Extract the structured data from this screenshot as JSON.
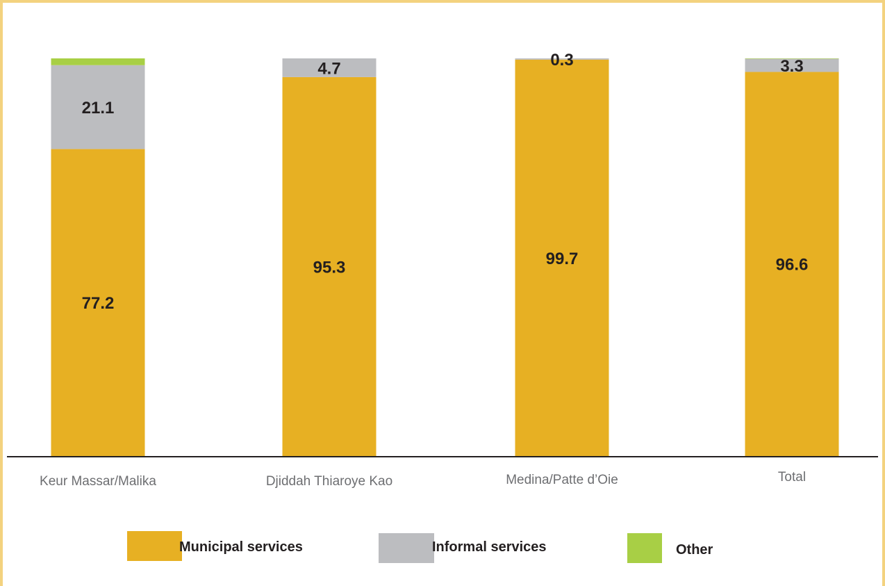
{
  "colors": {
    "frame": "#f3d27f",
    "municipal": "#e7b023",
    "informal": "#bcbdc0",
    "other": "#a8cf45",
    "axis": "#231f20",
    "category_text": "#6d6e71"
  },
  "chart_data": {
    "type": "bar",
    "stacked": true,
    "title": "",
    "xlabel": "",
    "ylabel": "",
    "ylim": [
      0,
      100
    ],
    "grid": false,
    "legend_position": "bottom",
    "categories": [
      "Keur Massar/Malika",
      "Djiddah Thiaroye Kao",
      "Medina/Patte d’Oie",
      "Total"
    ],
    "series": [
      {
        "name": "Municipal services",
        "color": "#e7b023",
        "values": [
          77.2,
          95.3,
          99.7,
          96.6
        ],
        "labels": [
          "77.2",
          "95.3",
          "99.7",
          "96.6"
        ]
      },
      {
        "name": "Informal services",
        "color": "#bcbdc0",
        "values": [
          21.1,
          4.7,
          0.3,
          3.3
        ],
        "labels": [
          "21.1",
          "4.7",
          "0.3",
          "3.3"
        ]
      },
      {
        "name": "Other",
        "color": "#a8cf45",
        "values": [
          1.7,
          0,
          0,
          0.1
        ],
        "labels": [
          "",
          "",
          "",
          ""
        ]
      }
    ]
  }
}
